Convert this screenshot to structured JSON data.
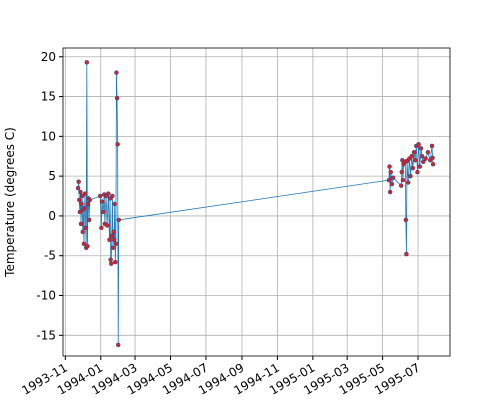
{
  "chart_data": {
    "type": "line",
    "ylabel": "Temperature (degrees C)",
    "x": [
      "1993-11-23",
      "1993-11-24",
      "1993-11-25",
      "1993-11-26",
      "1993-11-27",
      "1993-11-28",
      "1993-11-29",
      "1993-11-30",
      "1993-12-01",
      "1993-12-02",
      "1993-12-03",
      "1993-12-04",
      "1993-12-05",
      "1993-12-06",
      "1993-12-07",
      "1993-12-08",
      "1993-12-09",
      "1993-12-10",
      "1993-12-11",
      "1993-12-12",
      "1993-12-13",
      "1993-12-31",
      "1994-01-02",
      "1994-01-03",
      "1994-01-05",
      "1994-01-07",
      "1994-01-08",
      "1994-01-10",
      "1994-01-12",
      "1994-01-14",
      "1994-01-16",
      "1994-01-17",
      "1994-01-18",
      "1994-01-19",
      "1994-01-20",
      "1994-01-21",
      "1994-01-22",
      "1994-01-23",
      "1994-01-24",
      "1994-01-25",
      "1994-01-26",
      "1994-01-27",
      "1994-01-28",
      "1994-01-29",
      "1994-01-30",
      "1994-01-31",
      "1994-02-01",
      "1995-05-12",
      "1995-05-13",
      "1995-05-14",
      "1995-05-15",
      "1995-05-17",
      "1995-05-19",
      "1995-06-02",
      "1995-06-03",
      "1995-06-04",
      "1995-06-05",
      "1995-06-06",
      "1995-06-09",
      "1995-06-10",
      "1995-06-11",
      "1995-06-12",
      "1995-06-14",
      "1995-06-16",
      "1995-06-18",
      "1995-06-20",
      "1995-06-22",
      "1995-06-24",
      "1995-06-26",
      "1995-06-28",
      "1995-06-30",
      "1995-07-02",
      "1995-07-04",
      "1995-07-06",
      "1995-07-08",
      "1995-07-10",
      "1995-07-14",
      "1995-07-18",
      "1995-07-22",
      "1995-07-25",
      "1995-07-26",
      "1995-07-27"
    ],
    "series": [
      {
        "line_color": "#1f77b4",
        "marker_color": "#d62728",
        "marker_edge": "#1f3f8f",
        "values": [
          3.5,
          4.3,
          2.0,
          0.5,
          3.0,
          -1.0,
          1.5,
          2.5,
          -2.0,
          0.8,
          -3.5,
          1.0,
          2.8,
          -1.5,
          -4.0,
          19.3,
          -3.8,
          1.5,
          2.2,
          -0.5,
          2.0,
          2.5,
          -1.5,
          1.8,
          0.5,
          2.7,
          -1.0,
          2.5,
          -1.2,
          2.8,
          -3.0,
          2.2,
          -5.5,
          -6.0,
          -2.5,
          2.5,
          -4.0,
          -2.0,
          -3.0,
          1.5,
          -5.8,
          -3.5,
          18.0,
          14.8,
          9.0,
          -16.2,
          -0.5,
          4.5,
          6.2,
          3.0,
          5.5,
          4.0,
          4.8,
          3.8,
          5.5,
          7.0,
          4.5,
          6.5,
          6.8,
          -0.5,
          -4.8,
          6.9,
          4.2,
          7.2,
          5.0,
          7.5,
          6.0,
          8.0,
          7.0,
          8.8,
          5.5,
          9.0,
          6.2,
          8.5,
          7.5,
          6.8,
          7.2,
          8.0,
          7.0,
          8.8,
          7.3,
          6.5
        ]
      }
    ],
    "xlim": [
      "1993-10-28",
      "1995-08-25"
    ],
    "xticks": [
      {
        "value": "1993-11-01",
        "label": "1993-11"
      },
      {
        "value": "1994-01-01",
        "label": "1994-01"
      },
      {
        "value": "1994-03-01",
        "label": "1994-03"
      },
      {
        "value": "1994-05-01",
        "label": "1994-05"
      },
      {
        "value": "1994-07-01",
        "label": "1994-07"
      },
      {
        "value": "1994-09-01",
        "label": "1994-09"
      },
      {
        "value": "1994-11-01",
        "label": "1994-11"
      },
      {
        "value": "1995-01-01",
        "label": "1995-01"
      },
      {
        "value": "1995-03-01",
        "label": "1995-03"
      },
      {
        "value": "1995-05-01",
        "label": "1995-05"
      },
      {
        "value": "1995-07-01",
        "label": "1995-07"
      }
    ],
    "ylim": [
      -17.6,
      21.1
    ],
    "yticks": [
      -15,
      -10,
      -5,
      0,
      5,
      10,
      15,
      20
    ],
    "grid": true
  }
}
